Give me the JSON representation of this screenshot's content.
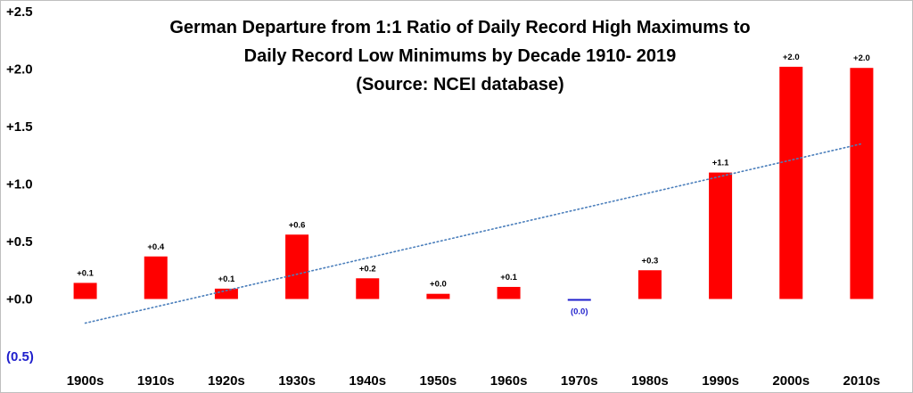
{
  "chart_data": {
    "type": "bar",
    "title_lines": [
      "German Departure from 1:1 Ratio of Daily Record High Maximums to",
      "Daily Record Low Minimums by Decade 1910- 2019",
      "(Source: NCEI database)"
    ],
    "categories": [
      "1900s",
      "1910s",
      "1920s",
      "1930s",
      "1940s",
      "1950s",
      "1960s",
      "1970s",
      "1980s",
      "1990s",
      "2000s",
      "2010s"
    ],
    "values": [
      0.14,
      0.37,
      0.09,
      0.56,
      0.18,
      0.045,
      0.105,
      -0.015,
      0.25,
      1.1,
      2.02,
      2.01
    ],
    "data_labels": [
      "+0.1",
      "+0.4",
      "+0.1",
      "+0.6",
      "+0.2",
      "+0.0",
      "+0.1",
      "(0.0)",
      "+0.3",
      "+1.1",
      "+2.0",
      "+2.0"
    ],
    "y_ticks": [
      2.5,
      2.0,
      1.5,
      1.0,
      0.5,
      0.0,
      -0.5
    ],
    "y_tick_labels": [
      "+2.5",
      "+2.0",
      "+1.5",
      "+1.0",
      "+0.5",
      "+0.0",
      "(0.5)"
    ],
    "ylim": [
      -0.5,
      2.5
    ],
    "trendline": {
      "style": "dotted",
      "start": -0.21,
      "end": 1.35
    },
    "grid": false,
    "colors": {
      "positive": "#ff0000",
      "negative": "#1f1fcc",
      "trend": "#4a7ebb"
    }
  }
}
